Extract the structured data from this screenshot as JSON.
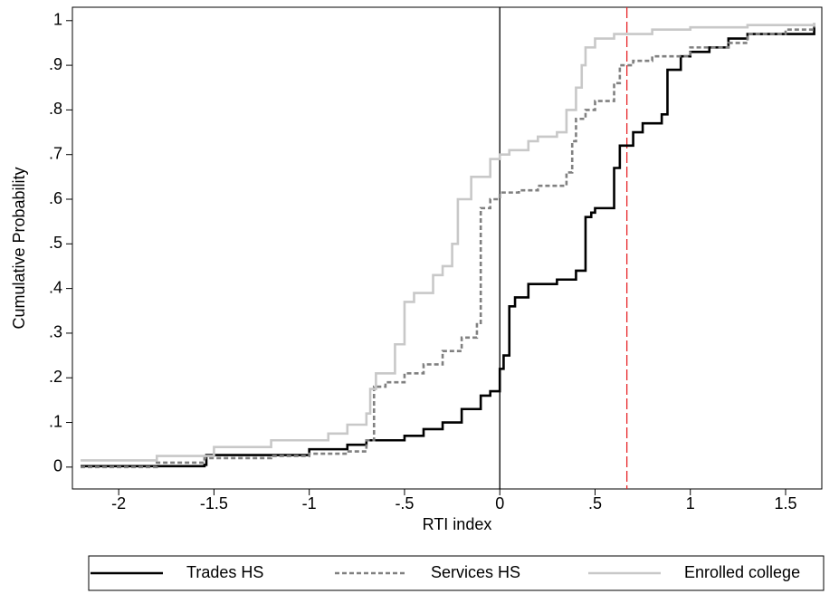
{
  "chart_data": {
    "type": "line",
    "step": "post",
    "x_label": "RTI index",
    "y_label": "Cumulative Probability",
    "xlim": [
      -2.243,
      1.69
    ],
    "ylim": [
      -0.049,
      1.03
    ],
    "xticks": [
      -2,
      -1.5,
      -1,
      {
        "value": -0.5,
        "label": "-.5"
      },
      0,
      {
        "value": 0.5,
        "label": ".5"
      },
      1,
      1.5
    ],
    "yticks": [
      0,
      {
        "value": 0.1,
        "label": ".1"
      },
      {
        "value": 0.2,
        "label": ".2"
      },
      {
        "value": 0.3,
        "label": ".3"
      },
      {
        "value": 0.4,
        "label": ".4"
      },
      {
        "value": 0.5,
        "label": ".5"
      },
      {
        "value": 0.6,
        "label": ".6"
      },
      {
        "value": 0.7,
        "label": ".7"
      },
      {
        "value": 0.8,
        "label": ".8"
      },
      {
        "value": 0.9,
        "label": ".9"
      },
      1
    ],
    "legend": "bottom",
    "vlines": [
      {
        "value": 0,
        "color": "#000000",
        "dash": false
      },
      {
        "value": 0.667,
        "color": "#e8262a",
        "dash": true
      }
    ],
    "series": [
      {
        "name": "Trades HS",
        "color": "#000000",
        "dash": false,
        "x": [
          -2.2,
          -1.55,
          -1.54,
          -1.0,
          -0.8,
          -0.7,
          -0.5,
          -0.4,
          -0.3,
          -0.2,
          -0.1,
          -0.05,
          0,
          0.02,
          0.05,
          0.08,
          0.15,
          0.3,
          0.4,
          0.45,
          0.48,
          0.5,
          0.6,
          0.63,
          0.7,
          0.75,
          0.85,
          0.88,
          0.95,
          1.0,
          1.1,
          1.2,
          1.3,
          1.65
        ],
        "values": [
          0.002,
          0.005,
          0.027,
          0.04,
          0.05,
          0.06,
          0.07,
          0.085,
          0.1,
          0.13,
          0.16,
          0.17,
          0.22,
          0.25,
          0.36,
          0.38,
          0.41,
          0.42,
          0.44,
          0.56,
          0.57,
          0.58,
          0.67,
          0.72,
          0.75,
          0.77,
          0.79,
          0.89,
          0.92,
          0.93,
          0.94,
          0.96,
          0.97,
          0.985
        ]
      },
      {
        "name": "Services HS",
        "color": "#808080",
        "dash": true,
        "x": [
          -2.2,
          -1.8,
          -1.55,
          -1.2,
          -1.0,
          -0.8,
          -0.7,
          -0.66,
          -0.6,
          -0.5,
          -0.4,
          -0.3,
          -0.2,
          -0.12,
          -0.1,
          -0.05,
          0,
          0.1,
          0.2,
          0.35,
          0.38,
          0.4,
          0.45,
          0.5,
          0.6,
          0.63,
          0.7,
          0.8,
          1.0,
          1.2,
          1.3,
          1.5,
          1.65
        ],
        "values": [
          0.0,
          0.01,
          0.02,
          0.025,
          0.03,
          0.035,
          0.06,
          0.18,
          0.19,
          0.21,
          0.23,
          0.26,
          0.29,
          0.32,
          0.58,
          0.6,
          0.615,
          0.62,
          0.63,
          0.66,
          0.73,
          0.78,
          0.8,
          0.82,
          0.86,
          0.9,
          0.91,
          0.92,
          0.94,
          0.95,
          0.97,
          0.98,
          0.995
        ]
      },
      {
        "name": "Enrolled college",
        "color": "#c8c8c8",
        "dash": false,
        "x": [
          -2.2,
          -1.8,
          -1.5,
          -1.2,
          -0.9,
          -0.8,
          -0.7,
          -0.68,
          -0.65,
          -0.55,
          -0.5,
          -0.45,
          -0.35,
          -0.3,
          -0.25,
          -0.22,
          -0.15,
          -0.05,
          0,
          0.05,
          0.15,
          0.2,
          0.3,
          0.35,
          0.4,
          0.43,
          0.45,
          0.5,
          0.6,
          0.8,
          1.0,
          1.3,
          1.65
        ],
        "values": [
          0.015,
          0.025,
          0.045,
          0.06,
          0.075,
          0.095,
          0.12,
          0.175,
          0.21,
          0.275,
          0.37,
          0.39,
          0.43,
          0.45,
          0.5,
          0.6,
          0.65,
          0.69,
          0.7,
          0.71,
          0.73,
          0.74,
          0.75,
          0.8,
          0.85,
          0.9,
          0.94,
          0.96,
          0.97,
          0.98,
          0.985,
          0.99,
          0.995
        ]
      }
    ]
  }
}
